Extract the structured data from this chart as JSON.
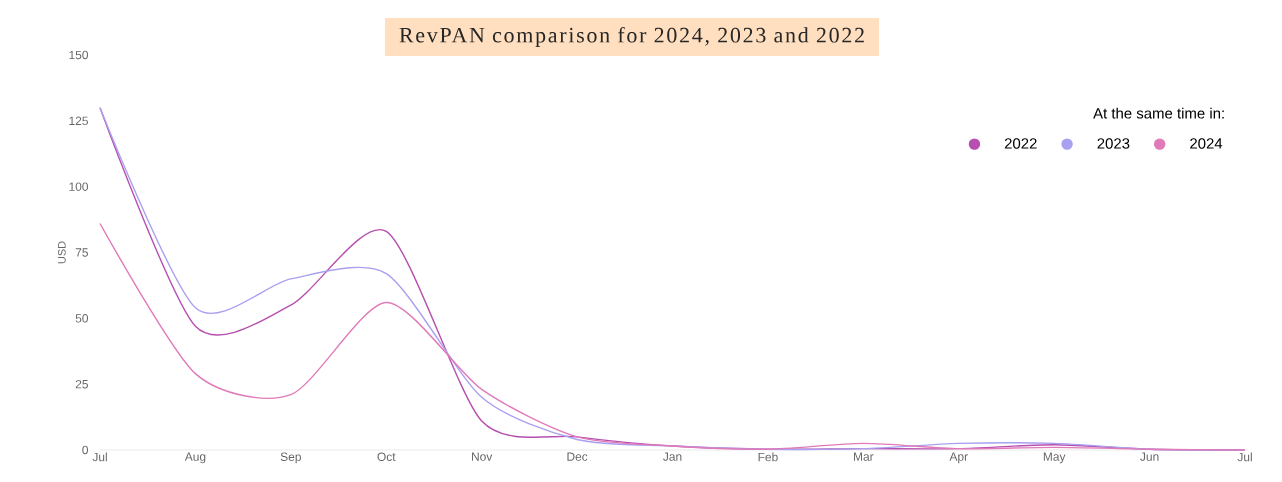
{
  "chart_data": {
    "type": "line",
    "title": "RevPAN comparison for 2024, 2023 and 2022",
    "ylabel": "USD",
    "legend_title": "At the same time in:",
    "categories": [
      "Jul",
      "Aug",
      "Sep",
      "Oct",
      "Nov",
      "Dec",
      "Jan",
      "Feb",
      "Mar",
      "Apr",
      "May",
      "Jun",
      "Jul"
    ],
    "ylim": [
      0,
      150
    ],
    "yticks": [
      0,
      25,
      50,
      75,
      100,
      125,
      150
    ],
    "grid": false,
    "legend": "top right",
    "marker": "none",
    "line_style": "solid",
    "series": [
      {
        "name": "2022",
        "color": "#b64fb0",
        "values": [
          130,
          47,
          55,
          83,
          11,
          5,
          1.5,
          0.3,
          0.5,
          0.5,
          2,
          0.3,
          0
        ]
      },
      {
        "name": "2023",
        "color": "#a9a0f0",
        "values": [
          130,
          54,
          65,
          67,
          20,
          4,
          1.5,
          0.3,
          0.5,
          2.5,
          2.5,
          0.3,
          0
        ]
      },
      {
        "name": "2024",
        "color": "#e07ab8",
        "values": [
          86,
          29,
          21,
          56,
          23,
          5,
          1.5,
          0.3,
          2.5,
          0.5,
          1,
          0.3,
          0
        ]
      }
    ]
  }
}
